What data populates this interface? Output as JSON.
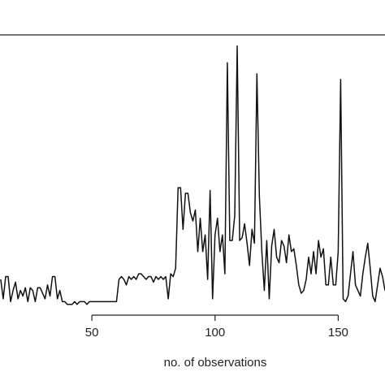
{
  "chart_data": {
    "type": "line",
    "x_label": "no. of observations",
    "x": [
      13,
      14,
      15,
      16,
      17,
      18,
      19,
      20,
      21,
      22,
      23,
      24,
      25,
      26,
      27,
      28,
      29,
      30,
      31,
      32,
      33,
      34,
      35,
      36,
      37,
      38,
      39,
      40,
      41,
      42,
      43,
      44,
      45,
      46,
      47,
      48,
      49,
      50,
      51,
      52,
      53,
      54,
      55,
      56,
      57,
      58,
      59,
      60,
      61,
      62,
      63,
      64,
      65,
      66,
      67,
      68,
      69,
      70,
      71,
      72,
      73,
      74,
      75,
      76,
      77,
      78,
      79,
      80,
      81,
      82,
      83,
      84,
      85,
      86,
      87,
      88,
      89,
      90,
      91,
      92,
      93,
      94,
      95,
      96,
      97,
      98,
      99,
      100,
      101,
      102,
      103,
      104,
      105,
      106,
      107,
      108,
      109,
      110,
      111,
      112,
      113,
      114,
      115,
      116,
      117,
      118,
      119,
      120,
      121,
      122,
      123,
      124,
      125,
      126,
      127,
      128,
      129,
      130,
      131,
      132,
      133,
      134,
      135,
      136,
      137,
      138,
      139,
      140,
      141,
      142,
      143,
      144,
      145,
      146,
      147,
      148,
      149,
      150,
      151,
      152,
      153,
      154,
      155,
      156,
      157,
      158,
      159,
      160,
      161,
      162,
      163,
      164,
      165,
      166,
      167,
      168,
      169
    ],
    "series": [
      {
        "color": "#111111",
        "values": [
          12,
          5,
          13,
          13,
          4,
          8,
          11,
          5,
          8,
          6,
          9,
          4,
          9,
          8,
          4,
          9,
          9,
          7,
          5,
          10,
          6,
          13,
          13,
          5,
          8,
          4,
          4,
          3,
          3,
          3,
          4,
          3,
          4,
          4,
          4,
          3,
          4,
          4,
          4,
          4,
          4,
          4,
          4,
          4,
          4,
          4,
          4,
          4,
          12,
          13,
          12,
          10,
          13,
          12,
          13,
          12,
          14,
          14,
          13,
          12,
          13,
          13,
          11,
          13,
          12,
          13,
          12,
          13,
          5,
          14,
          13,
          16,
          45,
          45,
          30,
          43,
          43,
          36,
          33,
          37,
          22,
          34,
          22,
          28,
          12,
          44,
          5,
          28,
          34,
          22,
          28,
          14,
          90,
          26,
          26,
          35,
          96,
          26,
          27,
          32,
          25,
          17,
          30,
          25,
          86,
          42,
          22,
          8,
          26,
          5,
          24,
          30,
          20,
          18,
          26,
          24,
          18,
          28,
          22,
          23,
          17,
          10,
          7,
          8,
          12,
          20,
          14,
          22,
          14,
          26,
          20,
          23,
          10,
          10,
          20,
          10,
          10,
          22,
          84,
          5,
          4,
          6,
          14,
          22,
          10,
          8,
          6,
          14,
          20,
          25,
          16,
          6,
          4,
          10,
          16,
          13,
          8
        ]
      }
    ],
    "xlim": [
      12.7,
      169
    ],
    "xticks": [
      50,
      100,
      150
    ],
    "ylim": [
      0,
      100
    ]
  }
}
